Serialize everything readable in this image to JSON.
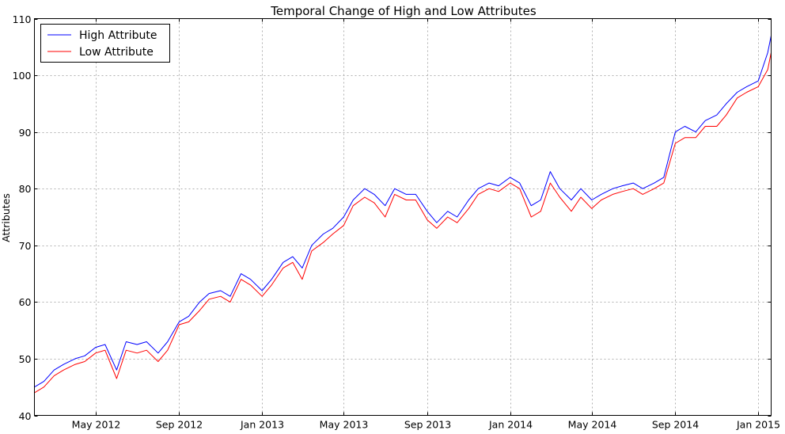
{
  "chart_data": {
    "type": "line",
    "title": "Temporal Change of High and Low Attributes",
    "xlabel": "",
    "ylabel": "Attributes",
    "xlim": [
      "2012-02-01",
      "2015-01-20"
    ],
    "ylim": [
      40,
      110
    ],
    "grid": true,
    "legend_position": "top-left",
    "x_ticks": [
      {
        "date": "2012-05-01",
        "label": "May 2012"
      },
      {
        "date": "2012-09-01",
        "label": "Sep 2012"
      },
      {
        "date": "2013-01-01",
        "label": "Jan 2013"
      },
      {
        "date": "2013-05-01",
        "label": "May 2013"
      },
      {
        "date": "2013-09-01",
        "label": "Sep 2013"
      },
      {
        "date": "2014-01-01",
        "label": "Jan 2014"
      },
      {
        "date": "2014-05-01",
        "label": "May 2014"
      },
      {
        "date": "2014-09-01",
        "label": "Sep 2014"
      },
      {
        "date": "2015-01-01",
        "label": "Jan 2015"
      }
    ],
    "y_ticks": [
      40,
      50,
      60,
      70,
      80,
      90,
      100,
      110
    ],
    "x": [
      "2012-02-01",
      "2012-02-15",
      "2012-03-01",
      "2012-03-15",
      "2012-04-01",
      "2012-04-15",
      "2012-05-01",
      "2012-05-15",
      "2012-06-01",
      "2012-06-15",
      "2012-07-01",
      "2012-07-15",
      "2012-08-01",
      "2012-08-15",
      "2012-09-01",
      "2012-09-15",
      "2012-10-01",
      "2012-10-15",
      "2012-11-01",
      "2012-11-15",
      "2012-12-01",
      "2012-12-15",
      "2013-01-01",
      "2013-01-15",
      "2013-02-01",
      "2013-02-15",
      "2013-03-01",
      "2013-03-15",
      "2013-04-01",
      "2013-04-15",
      "2013-05-01",
      "2013-05-15",
      "2013-06-01",
      "2013-06-15",
      "2013-07-01",
      "2013-07-15",
      "2013-08-01",
      "2013-08-15",
      "2013-09-01",
      "2013-09-15",
      "2013-10-01",
      "2013-10-15",
      "2013-11-01",
      "2013-11-15",
      "2013-12-01",
      "2013-12-15",
      "2014-01-01",
      "2014-01-15",
      "2014-02-01",
      "2014-02-15",
      "2014-03-01",
      "2014-03-15",
      "2014-04-01",
      "2014-04-15",
      "2014-05-01",
      "2014-05-15",
      "2014-06-01",
      "2014-06-15",
      "2014-07-01",
      "2014-07-15",
      "2014-08-01",
      "2014-08-15",
      "2014-09-01",
      "2014-09-15",
      "2014-10-01",
      "2014-10-15",
      "2014-11-01",
      "2014-11-15",
      "2014-12-01",
      "2014-12-15",
      "2015-01-01",
      "2015-01-15",
      "2015-01-20"
    ],
    "series": [
      {
        "name": "High Attribute",
        "color": "#0000ff",
        "values": [
          45,
          46,
          48,
          49,
          50,
          50.5,
          52,
          52.5,
          48,
          53,
          52.5,
          53,
          51,
          53,
          56.5,
          57.5,
          60,
          61.5,
          62,
          61,
          65,
          64,
          62,
          64,
          67,
          68,
          66,
          70,
          72,
          73,
          75,
          78,
          80,
          79,
          77,
          80,
          79,
          79,
          76,
          74,
          76,
          75,
          78,
          80,
          81,
          80.5,
          82,
          81,
          77,
          78,
          83,
          80,
          78,
          80,
          78,
          79,
          80,
          80.5,
          81,
          80,
          81,
          82,
          90,
          91,
          90,
          92,
          93,
          95,
          97,
          98,
          99,
          104,
          107
        ]
      },
      {
        "name": "Low Attribute",
        "color": "#ff0000",
        "values": [
          44,
          45,
          47,
          48,
          49,
          49.5,
          51,
          51.5,
          46.5,
          51.5,
          51,
          51.5,
          49.5,
          51.5,
          56,
          56.5,
          58.5,
          60.5,
          61,
          60,
          64,
          63,
          61,
          63,
          66,
          67,
          64,
          69,
          70.5,
          72,
          73.5,
          77,
          78.5,
          77.5,
          75,
          79,
          78,
          78,
          74.5,
          73,
          75,
          74,
          76.5,
          79,
          80,
          79.5,
          81,
          80,
          75,
          76,
          81,
          78.5,
          76,
          78.5,
          76.5,
          78,
          79,
          79.5,
          80,
          79,
          80,
          81,
          88,
          89,
          89,
          91,
          91,
          93,
          96,
          97,
          98,
          101,
          104
        ]
      }
    ]
  }
}
